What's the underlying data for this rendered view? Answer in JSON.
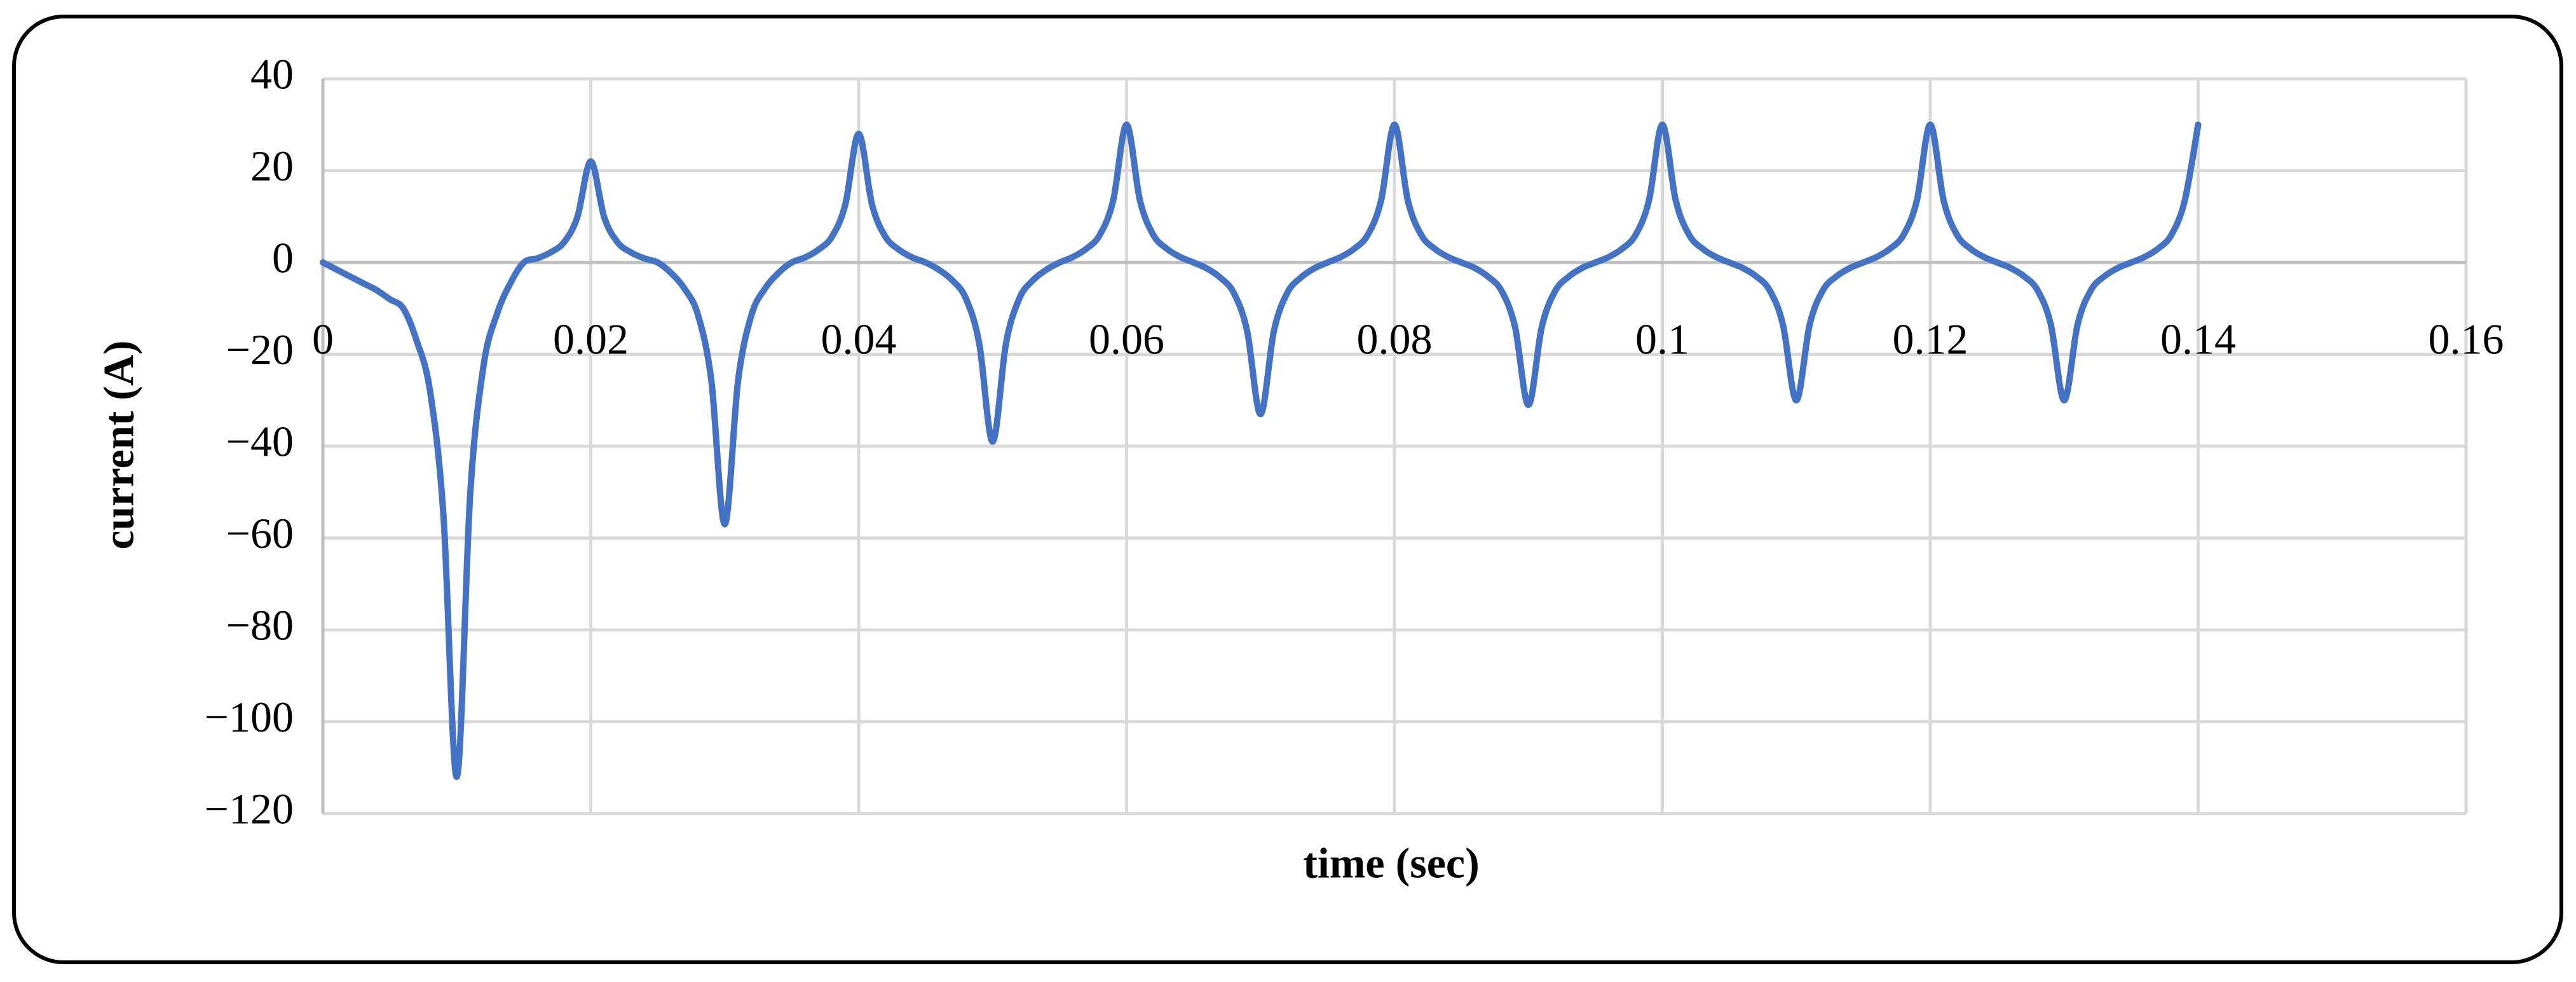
{
  "chart_data": {
    "type": "line",
    "x_label": "time (sec)",
    "y_label": "current  (A)",
    "x": [
      0,
      0.001,
      0.002,
      0.003,
      0.004,
      0.005,
      0.006,
      0.007,
      0.008,
      0.009,
      0.01,
      0.011,
      0.012,
      0.013,
      0.014,
      0.015,
      0.016,
      0.017,
      0.018,
      0.019,
      0.02,
      0.021,
      0.022,
      0.023,
      0.024,
      0.025,
      0.026,
      0.027,
      0.028,
      0.029,
      0.03,
      0.031,
      0.032,
      0.033,
      0.034,
      0.035,
      0.036,
      0.037,
      0.038,
      0.039,
      0.04,
      0.041,
      0.042,
      0.043,
      0.044,
      0.045,
      0.046,
      0.047,
      0.048,
      0.049,
      0.05,
      0.051,
      0.052,
      0.053,
      0.054,
      0.055,
      0.056,
      0.057,
      0.058,
      0.059,
      0.06,
      0.061,
      0.062,
      0.063,
      0.064,
      0.065,
      0.066,
      0.067,
      0.068,
      0.069,
      0.07,
      0.071,
      0.072,
      0.073,
      0.074,
      0.075,
      0.076,
      0.077,
      0.078,
      0.079,
      0.08,
      0.081,
      0.082,
      0.083,
      0.084,
      0.085,
      0.086,
      0.087,
      0.088,
      0.089,
      0.09,
      0.091,
      0.092,
      0.093,
      0.094,
      0.095,
      0.096,
      0.097,
      0.098,
      0.099,
      0.1,
      0.101,
      0.102,
      0.103,
      0.104,
      0.105,
      0.106,
      0.107,
      0.108,
      0.109,
      0.11,
      0.111,
      0.112,
      0.113,
      0.114,
      0.115,
      0.116,
      0.117,
      0.118,
      0.119,
      0.12,
      0.121,
      0.122,
      0.123,
      0.124,
      0.125,
      0.126,
      0.127,
      0.128,
      0.129,
      0.13,
      0.131,
      0.132,
      0.133,
      0.134,
      0.135,
      0.136,
      0.137,
      0.138,
      0.139,
      0.14
    ],
    "series": [
      {
        "color": "#4472c4",
        "values": [
          0,
          -1.5,
          -3,
          -4.5,
          -6,
          -8,
          -10,
          -17,
          -28,
          -55,
          -112,
          -50.4,
          -22.4,
          -11.2,
          -4.5,
          0,
          0.9,
          2.2,
          4.4,
          9.9,
          22,
          9.9,
          4.4,
          2.2,
          0.9,
          0,
          -2.3,
          -5.7,
          -11.4,
          -25.7,
          -57,
          -25.7,
          -11.4,
          -5.7,
          -2.3,
          0,
          1.1,
          2.8,
          5.6,
          12.6,
          28,
          12.6,
          5.6,
          2.8,
          1.1,
          0,
          -1.6,
          -3.9,
          -7.8,
          -17.6,
          -39,
          -17.6,
          -7.8,
          -3.9,
          -1.6,
          0,
          1.2,
          3,
          6,
          13.5,
          30,
          13.5,
          6,
          3,
          1.2,
          0,
          -1.3,
          -3.3,
          -6.6,
          -14.9,
          -33,
          -14.9,
          -6.6,
          -3.3,
          -1.3,
          0,
          1.2,
          3,
          6,
          13.5,
          30,
          13.5,
          6,
          3,
          1.2,
          0,
          -1.2,
          -3.1,
          -6.2,
          -14,
          -31,
          -14,
          -6.2,
          -3.1,
          -1.2,
          0,
          1.2,
          3,
          6,
          13.5,
          30,
          13.5,
          6,
          3,
          1.2,
          0,
          -1.2,
          -3,
          -6,
          -13.5,
          -30,
          -13.5,
          -6,
          -3,
          -1.2,
          0,
          1.2,
          3,
          6,
          13.5,
          30,
          13.5,
          6,
          3,
          1.2,
          0,
          -1.2,
          -3,
          -6,
          -13.5,
          -30,
          -13.5,
          -6,
          -3,
          -1.2,
          0,
          1.2,
          3,
          6,
          13.5,
          30
        ]
      }
    ],
    "xlim": [
      0,
      0.16
    ],
    "xticks": [
      0,
      0.02,
      0.04,
      0.06,
      0.08,
      0.1,
      0.12,
      0.14,
      0.16
    ],
    "ylim": [
      -120,
      40
    ],
    "yticks": [
      {
        "value": -120,
        "label": "−120"
      },
      {
        "value": -100,
        "label": "−100"
      },
      {
        "value": -80,
        "label": "−80"
      },
      {
        "value": -60,
        "label": "−60"
      },
      {
        "value": -40,
        "label": "−40"
      },
      {
        "value": -20,
        "label": "−20"
      },
      0,
      20,
      40
    ],
    "grid": true
  }
}
